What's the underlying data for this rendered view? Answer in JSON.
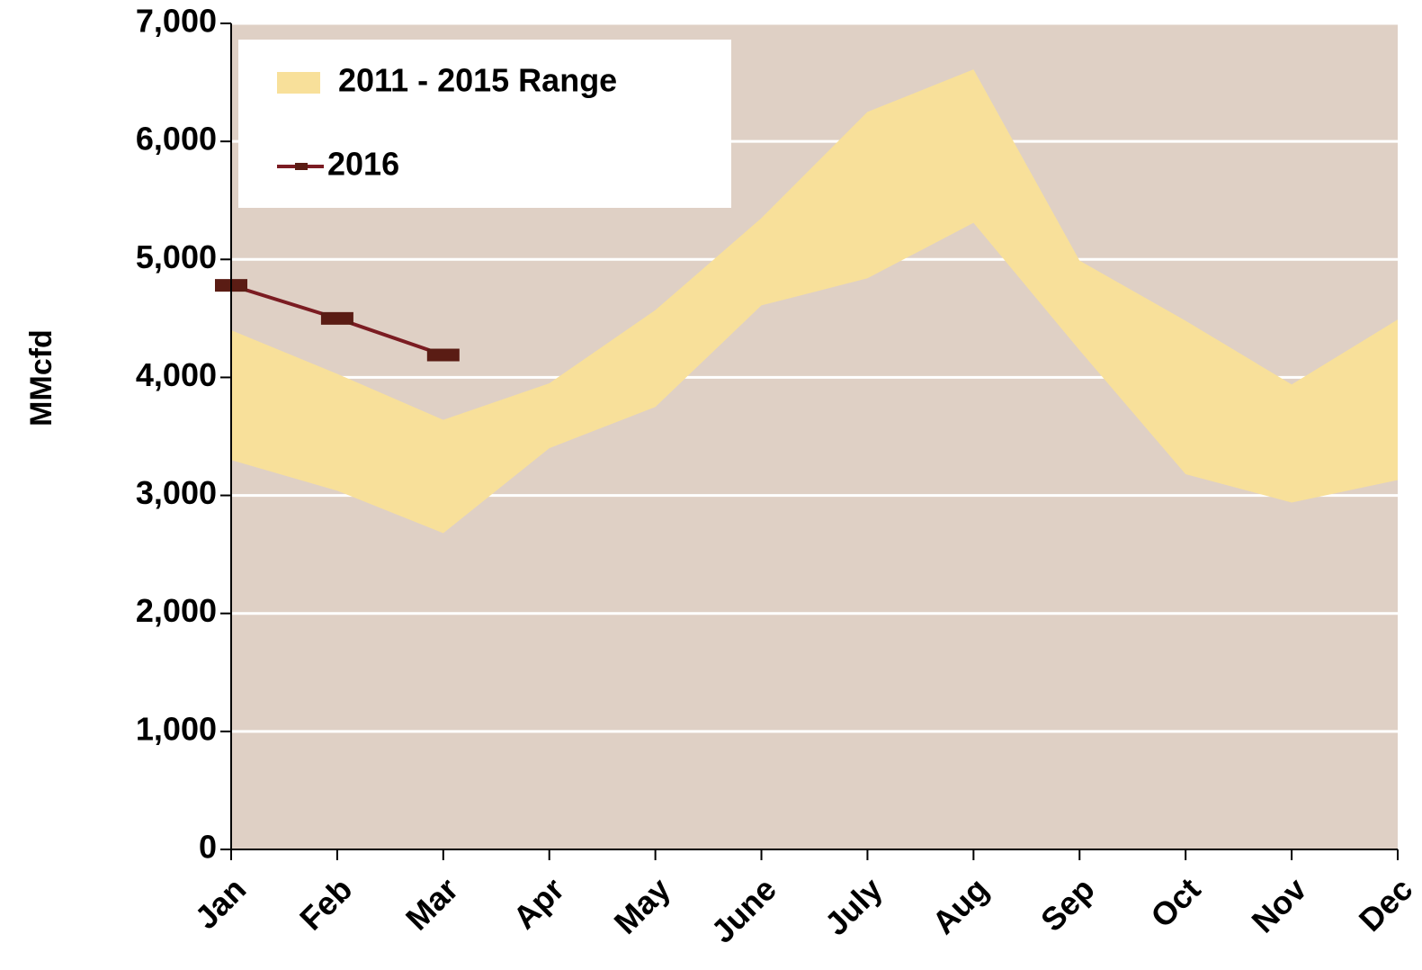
{
  "chart_data": {
    "type": "range_line",
    "y_label": "MMcfd",
    "categories": [
      "Jan",
      "Feb",
      "Mar",
      "Apr",
      "May",
      "June",
      "July",
      "Aug",
      "Sep",
      "Oct",
      "Nov",
      "Dec"
    ],
    "series": [
      {
        "name": "2011 - 2015 Range",
        "kind": "range",
        "color": "#f8e09a",
        "low": [
          3300,
          3040,
          2680,
          3400,
          3750,
          4610,
          4840,
          5310,
          4230,
          3180,
          2940,
          3130
        ],
        "high": [
          4400,
          4030,
          3640,
          3950,
          4570,
          5350,
          6250,
          6610,
          4990,
          4480,
          3940,
          4490
        ]
      },
      {
        "name": "2016",
        "kind": "line",
        "color": "#7b1c22",
        "marker_color": "#5a1c14",
        "values": [
          4780,
          4500,
          4190,
          null,
          null,
          null,
          null,
          null,
          null,
          null,
          null,
          null
        ]
      }
    ],
    "ylim": [
      0,
      7000
    ],
    "yticks": [
      {
        "value": 0,
        "label": "0"
      },
      {
        "value": 1000,
        "label": "1,000"
      },
      {
        "value": 2000,
        "label": "2,000"
      },
      {
        "value": 3000,
        "label": "3,000"
      },
      {
        "value": 4000,
        "label": "4,000"
      },
      {
        "value": 5000,
        "label": "5,000"
      },
      {
        "value": 6000,
        "label": "6,000"
      },
      {
        "value": 7000,
        "label": "7,000"
      }
    ],
    "grid": true,
    "plot_background": "#dfd0c5",
    "legend": "upper left"
  }
}
